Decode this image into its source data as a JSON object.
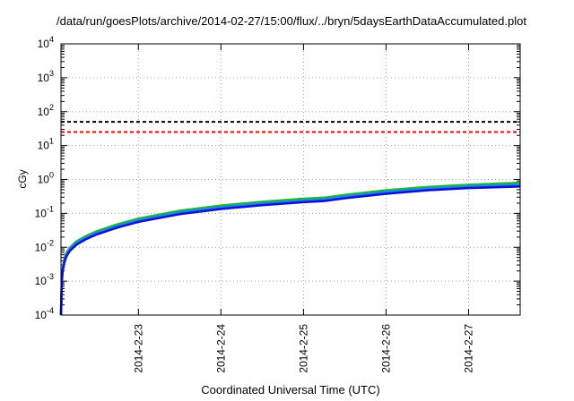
{
  "chart_data": {
    "type": "line",
    "title": "/data/run/goesPlots/archive/2014-02-27/15:00/flux/../bryn/5daysEarthDataAccumulated.plot",
    "xlabel": "Coordinated Universal Time (UTC)",
    "ylabel": "cGy",
    "yscale": "log",
    "ylim": [
      0.0001,
      10000
    ],
    "y_ticks": [
      {
        "value": 0.0001,
        "base": "10",
        "exp": "-4"
      },
      {
        "value": 0.001,
        "base": "10",
        "exp": "-3"
      },
      {
        "value": 0.01,
        "base": "10",
        "exp": "-2"
      },
      {
        "value": 0.1,
        "base": "10",
        "exp": "-1"
      },
      {
        "value": 1,
        "base": "10",
        "exp": "0"
      },
      {
        "value": 10,
        "base": "10",
        "exp": "1"
      },
      {
        "value": 100,
        "base": "10",
        "exp": "2"
      },
      {
        "value": 1000,
        "base": "10",
        "exp": "3"
      },
      {
        "value": 10000,
        "base": "10",
        "exp": "4"
      }
    ],
    "xlim": [
      "2014-02-22 01:30",
      "2014-02-27 15:00"
    ],
    "x_ticks": [
      "2014-2-23",
      "2014-2-24",
      "2014-2-25",
      "2014-2-26",
      "2014-2-27"
    ],
    "grid": true,
    "thresholds": [
      {
        "value": 50,
        "color": "#000000"
      },
      {
        "value": 25,
        "color": "#ff0000"
      }
    ],
    "series": [
      {
        "color": "#22bb22",
        "x": [
          "2014-02-22 01:30",
          "2014-02-22 01:45",
          "2014-02-22 02:00",
          "2014-02-22 02:30",
          "2014-02-22 03:00",
          "2014-02-22 04:00",
          "2014-02-22 06:00",
          "2014-02-22 09:00",
          "2014-02-22 12:00",
          "2014-02-22 18:00",
          "2014-02-23 00:00",
          "2014-02-23 12:00",
          "2014-02-24 00:00",
          "2014-02-24 12:00",
          "2014-02-25 00:00",
          "2014-02-25 06:00",
          "2014-02-25 12:00",
          "2014-02-26 00:00",
          "2014-02-26 12:00",
          "2014-02-27 00:00",
          "2014-02-27 15:00"
        ],
        "values": [
          0.0001,
          0.0012,
          0.0025,
          0.0045,
          0.0065,
          0.0095,
          0.015,
          0.022,
          0.03,
          0.048,
          0.07,
          0.12,
          0.17,
          0.22,
          0.27,
          0.29,
          0.35,
          0.48,
          0.6,
          0.7,
          0.8
        ]
      },
      {
        "color": "#1a8fd0",
        "x": [
          "2014-02-22 01:30",
          "2014-02-22 01:45",
          "2014-02-22 02:00",
          "2014-02-22 02:30",
          "2014-02-22 03:00",
          "2014-02-22 04:00",
          "2014-02-22 06:00",
          "2014-02-22 09:00",
          "2014-02-22 12:00",
          "2014-02-22 18:00",
          "2014-02-23 00:00",
          "2014-02-23 12:00",
          "2014-02-24 00:00",
          "2014-02-24 12:00",
          "2014-02-25 00:00",
          "2014-02-25 06:00",
          "2014-02-25 12:00",
          "2014-02-26 00:00",
          "2014-02-26 12:00",
          "2014-02-27 00:00",
          "2014-02-27 15:00"
        ],
        "values": [
          0.0001,
          0.0011,
          0.0023,
          0.0041,
          0.006,
          0.0088,
          0.0138,
          0.0203,
          0.0276,
          0.044,
          0.064,
          0.11,
          0.155,
          0.2,
          0.245,
          0.265,
          0.32,
          0.44,
          0.55,
          0.64,
          0.72
        ]
      },
      {
        "color": "#1010dd",
        "x": [
          "2014-02-22 01:30",
          "2014-02-22 01:45",
          "2014-02-22 02:00",
          "2014-02-22 02:30",
          "2014-02-22 03:00",
          "2014-02-22 04:00",
          "2014-02-22 06:00",
          "2014-02-22 09:00",
          "2014-02-22 12:00",
          "2014-02-22 18:00",
          "2014-02-23 00:00",
          "2014-02-23 12:00",
          "2014-02-24 00:00",
          "2014-02-24 12:00",
          "2014-02-25 00:00",
          "2014-02-25 06:00",
          "2014-02-25 12:00",
          "2014-02-26 00:00",
          "2014-02-26 12:00",
          "2014-02-27 00:00",
          "2014-02-27 15:00"
        ],
        "values": [
          0.0001,
          0.001,
          0.002,
          0.0036,
          0.0052,
          0.0077,
          0.012,
          0.0178,
          0.0242,
          0.0385,
          0.056,
          0.095,
          0.135,
          0.175,
          0.215,
          0.232,
          0.28,
          0.38,
          0.48,
          0.56,
          0.62
        ]
      }
    ]
  }
}
